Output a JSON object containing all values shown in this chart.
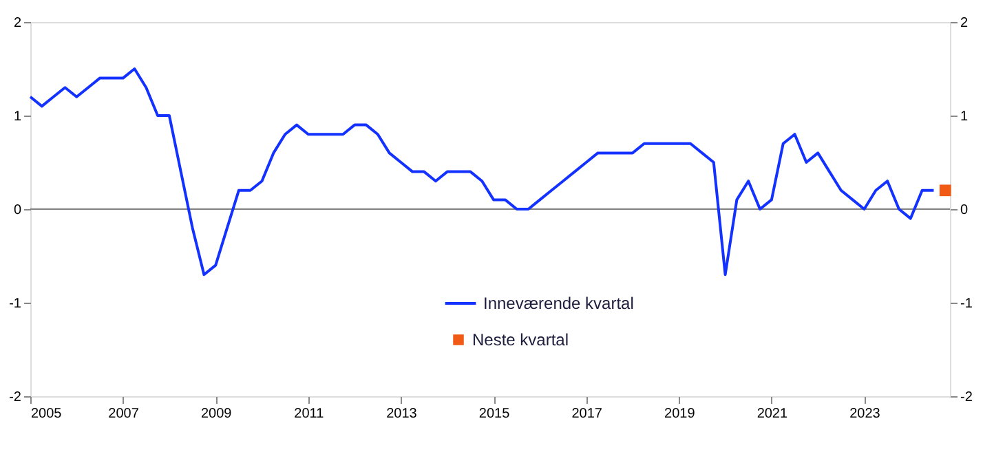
{
  "chart_data": {
    "type": "line",
    "xlim": [
      2005,
      2024.85
    ],
    "xticks": [
      2005,
      2007,
      2009,
      2011,
      2013,
      2015,
      2017,
      2019,
      2021,
      2023
    ],
    "ylim": [
      -2,
      2
    ],
    "yticks": [
      -2,
      -1,
      0,
      1,
      2
    ],
    "y2lim": [
      -2,
      2
    ],
    "y2ticks": [
      -2,
      -1,
      0,
      1,
      2
    ],
    "legend": "bottom",
    "ref_lines": [
      {
        "axis": "y",
        "value": 0,
        "color": "#808080"
      }
    ],
    "series": [
      {
        "name": "Inneværende kvartal",
        "color": "#1432ff",
        "marker": "none",
        "line_style": "solid",
        "x": [
          2005.0,
          2005.25,
          2005.5,
          2005.75,
          2006.0,
          2006.25,
          2006.5,
          2006.75,
          2007.0,
          2007.25,
          2007.5,
          2007.75,
          2008.0,
          2008.25,
          2008.5,
          2008.75,
          2009.0,
          2009.25,
          2009.5,
          2009.75,
          2010.0,
          2010.25,
          2010.5,
          2010.75,
          2011.0,
          2011.25,
          2011.5,
          2011.75,
          2012.0,
          2012.25,
          2012.5,
          2012.75,
          2013.0,
          2013.25,
          2013.5,
          2013.75,
          2014.0,
          2014.25,
          2014.5,
          2014.75,
          2015.0,
          2015.25,
          2015.5,
          2015.75,
          2016.0,
          2016.25,
          2016.5,
          2016.75,
          2017.0,
          2017.25,
          2017.5,
          2017.75,
          2018.0,
          2018.25,
          2018.5,
          2018.75,
          2019.0,
          2019.25,
          2019.5,
          2019.75,
          2020.0,
          2020.25,
          2020.5,
          2020.75,
          2021.0,
          2021.25,
          2021.5,
          2021.75,
          2022.0,
          2022.25,
          2022.5,
          2022.75,
          2023.0,
          2023.25,
          2023.5,
          2023.75,
          2024.0,
          2024.25,
          2024.5
        ],
        "values": [
          1.2,
          1.1,
          1.2,
          1.3,
          1.2,
          1.3,
          1.4,
          1.4,
          1.4,
          1.5,
          1.3,
          1.0,
          1.0,
          0.4,
          -0.2,
          -0.7,
          -0.6,
          -0.2,
          0.2,
          0.2,
          0.3,
          0.6,
          0.8,
          0.9,
          0.8,
          0.8,
          0.8,
          0.8,
          0.9,
          0.9,
          0.8,
          0.6,
          0.5,
          0.4,
          0.4,
          0.3,
          0.4,
          0.4,
          0.4,
          0.3,
          0.1,
          0.1,
          0.0,
          0.0,
          0.1,
          0.2,
          0.3,
          0.4,
          0.5,
          0.6,
          0.6,
          0.6,
          0.6,
          0.7,
          0.7,
          0.7,
          0.7,
          0.7,
          0.6,
          0.5,
          -0.7,
          0.1,
          0.3,
          0.0,
          0.1,
          0.7,
          0.8,
          0.5,
          0.6,
          0.4,
          0.2,
          0.1,
          0.0,
          0.2,
          0.3,
          0.0,
          -0.1,
          0.2,
          0.2
        ]
      },
      {
        "name": "Neste kvartal",
        "type": "scatter",
        "color": "#f05a14",
        "marker": "square",
        "x": [
          2024.75
        ],
        "values": [
          0.2
        ]
      }
    ]
  }
}
